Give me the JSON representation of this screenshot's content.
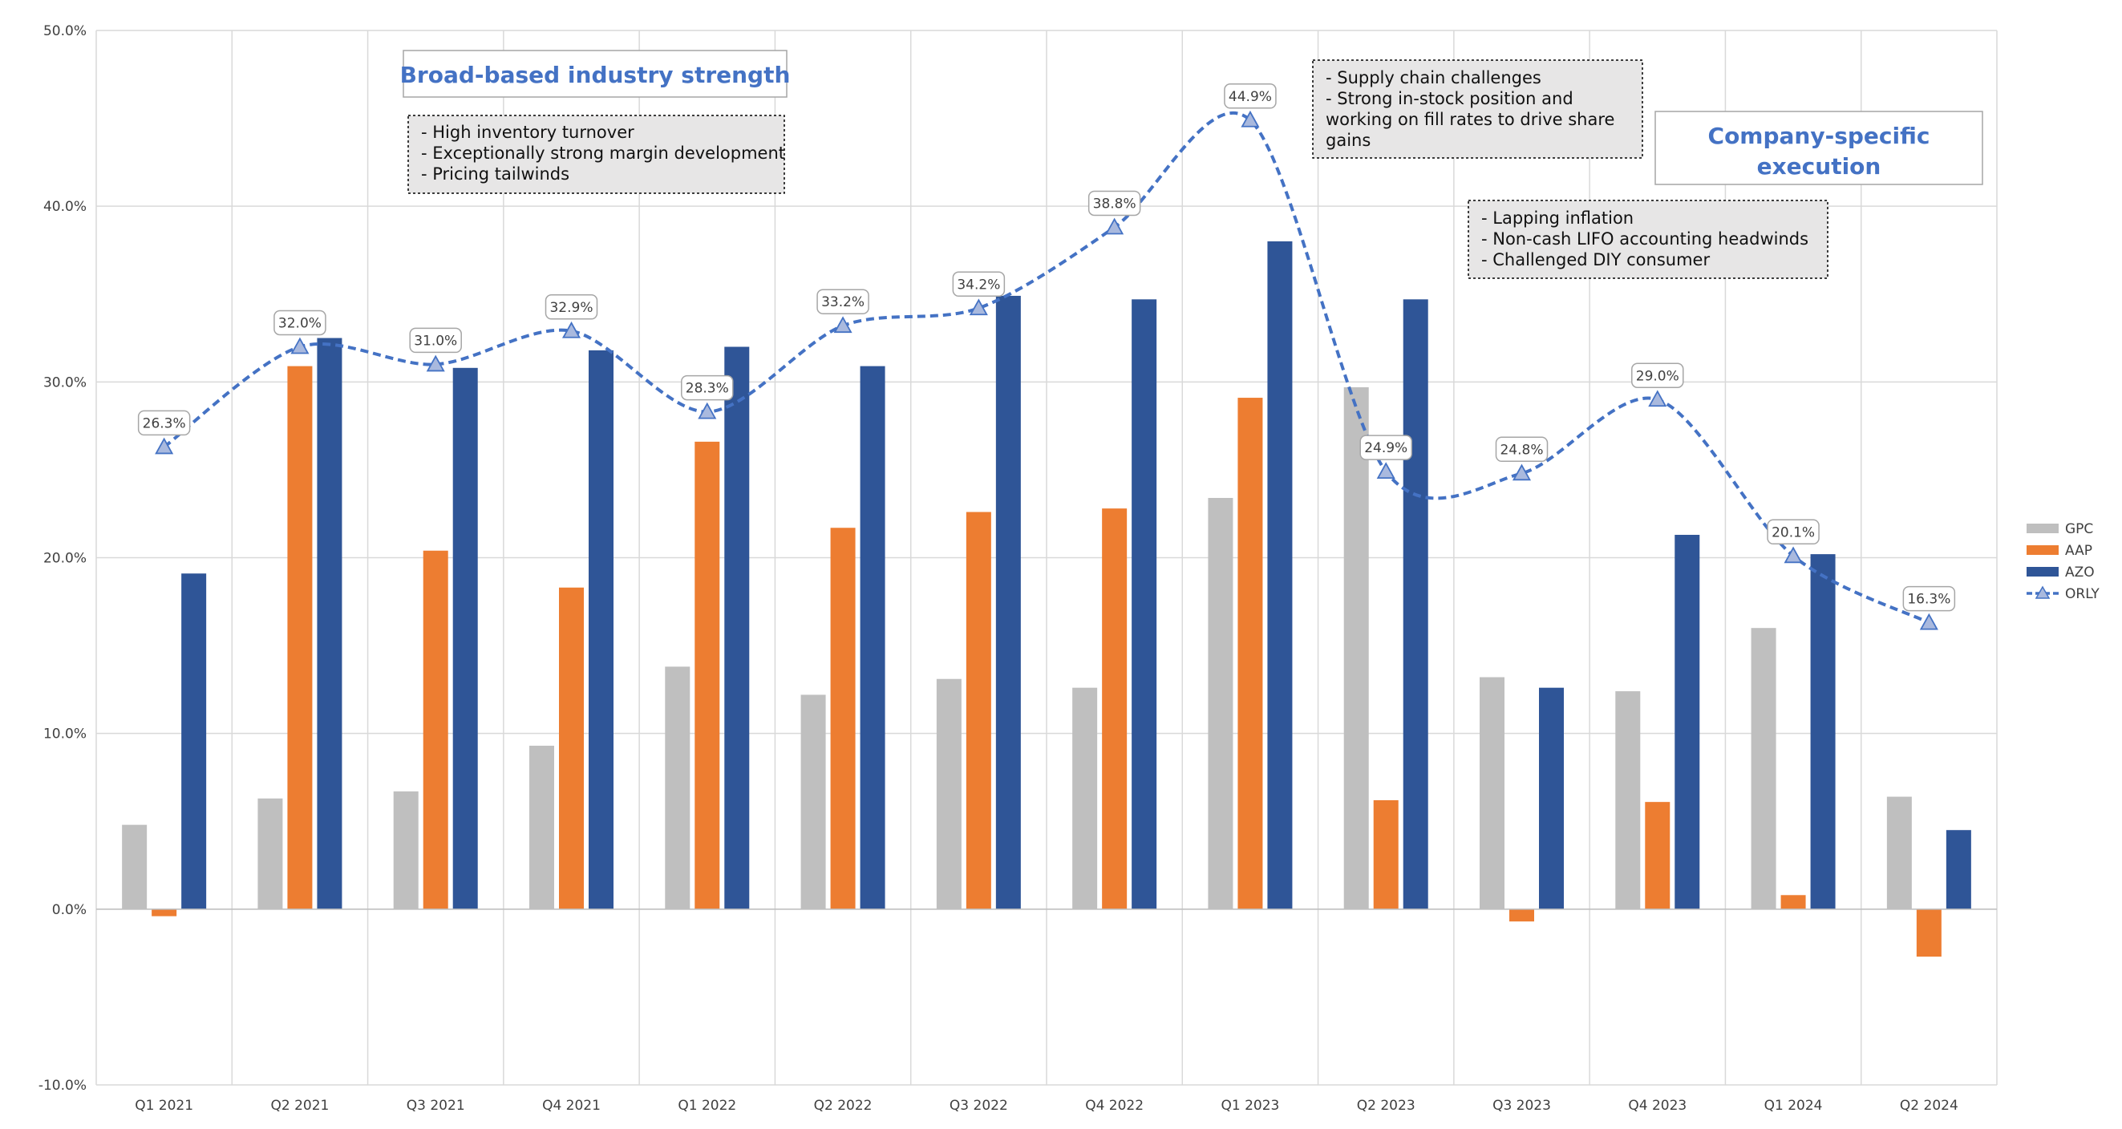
{
  "chart_data": {
    "type": "bar",
    "categories": [
      "Q1 2021",
      "Q2 2021",
      "Q3 2021",
      "Q4 2021",
      "Q1 2022",
      "Q2 2022",
      "Q3 2022",
      "Q4 2022",
      "Q1 2023",
      "Q2 2023",
      "Q3 2023",
      "Q4 2023",
      "Q1 2024",
      "Q2 2024"
    ],
    "ylim": [
      -10,
      50
    ],
    "yticks": [
      "-10.0%",
      "0.0%",
      "10.0%",
      "20.0%",
      "30.0%",
      "40.0%",
      "50.0%"
    ],
    "ytick_values": [
      -10,
      0,
      10,
      20,
      30,
      40,
      50
    ],
    "grid": true,
    "legend_position": "right",
    "series": [
      {
        "name": "GPC",
        "type": "bar",
        "color": "#BFBFBF",
        "values": [
          4.8,
          6.3,
          6.7,
          9.3,
          13.8,
          12.2,
          13.1,
          12.6,
          23.4,
          29.7,
          13.2,
          12.4,
          16.0,
          6.4
        ]
      },
      {
        "name": "AAP",
        "type": "bar",
        "color": "#ED7D31",
        "values": [
          -0.4,
          30.9,
          20.4,
          18.3,
          26.6,
          21.7,
          22.6,
          22.8,
          29.1,
          6.2,
          -0.7,
          6.1,
          0.8,
          -2.7
        ]
      },
      {
        "name": "AZO",
        "type": "bar",
        "color": "#2F5597",
        "values": [
          19.1,
          32.5,
          30.8,
          31.8,
          32.0,
          30.9,
          34.9,
          34.7,
          38.0,
          34.7,
          12.6,
          21.3,
          20.2,
          4.5
        ]
      },
      {
        "name": "ORLY",
        "type": "line",
        "style": "dashed-smooth-triangle-markers",
        "color": "#4472C4",
        "values": [
          26.3,
          32.0,
          31.0,
          32.9,
          28.3,
          33.2,
          34.2,
          38.8,
          44.9,
          24.9,
          24.8,
          29.0,
          20.1,
          16.3
        ],
        "labels": [
          "26.3%",
          "32.0%",
          "31.0%",
          "32.9%",
          "28.3%",
          "33.2%",
          "34.2%",
          "38.8%",
          "44.9%",
          "24.9%",
          "24.8%",
          "29.0%",
          "20.1%",
          "16.3%"
        ]
      }
    ],
    "annotations": [
      {
        "id": "broad",
        "style": "title",
        "lines": [
          "Broad-based industry strength"
        ]
      },
      {
        "id": "broad_notes",
        "style": "note",
        "lines": [
          "- High inventory turnover",
          "- Exceptionally strong margin development",
          "- Pricing tailwinds"
        ]
      },
      {
        "id": "supply_notes",
        "style": "note",
        "lines": [
          "- Supply chain challenges",
          "- Strong in-stock position and",
          "working on fill rates to drive share",
          "gains"
        ]
      },
      {
        "id": "company",
        "style": "title",
        "lines": [
          "Company-specific",
          "execution"
        ]
      },
      {
        "id": "lapping_notes",
        "style": "note",
        "lines": [
          "- Lapping inflation",
          "- Non-cash LIFO accounting headwinds",
          "- Challenged DIY consumer"
        ]
      }
    ]
  }
}
